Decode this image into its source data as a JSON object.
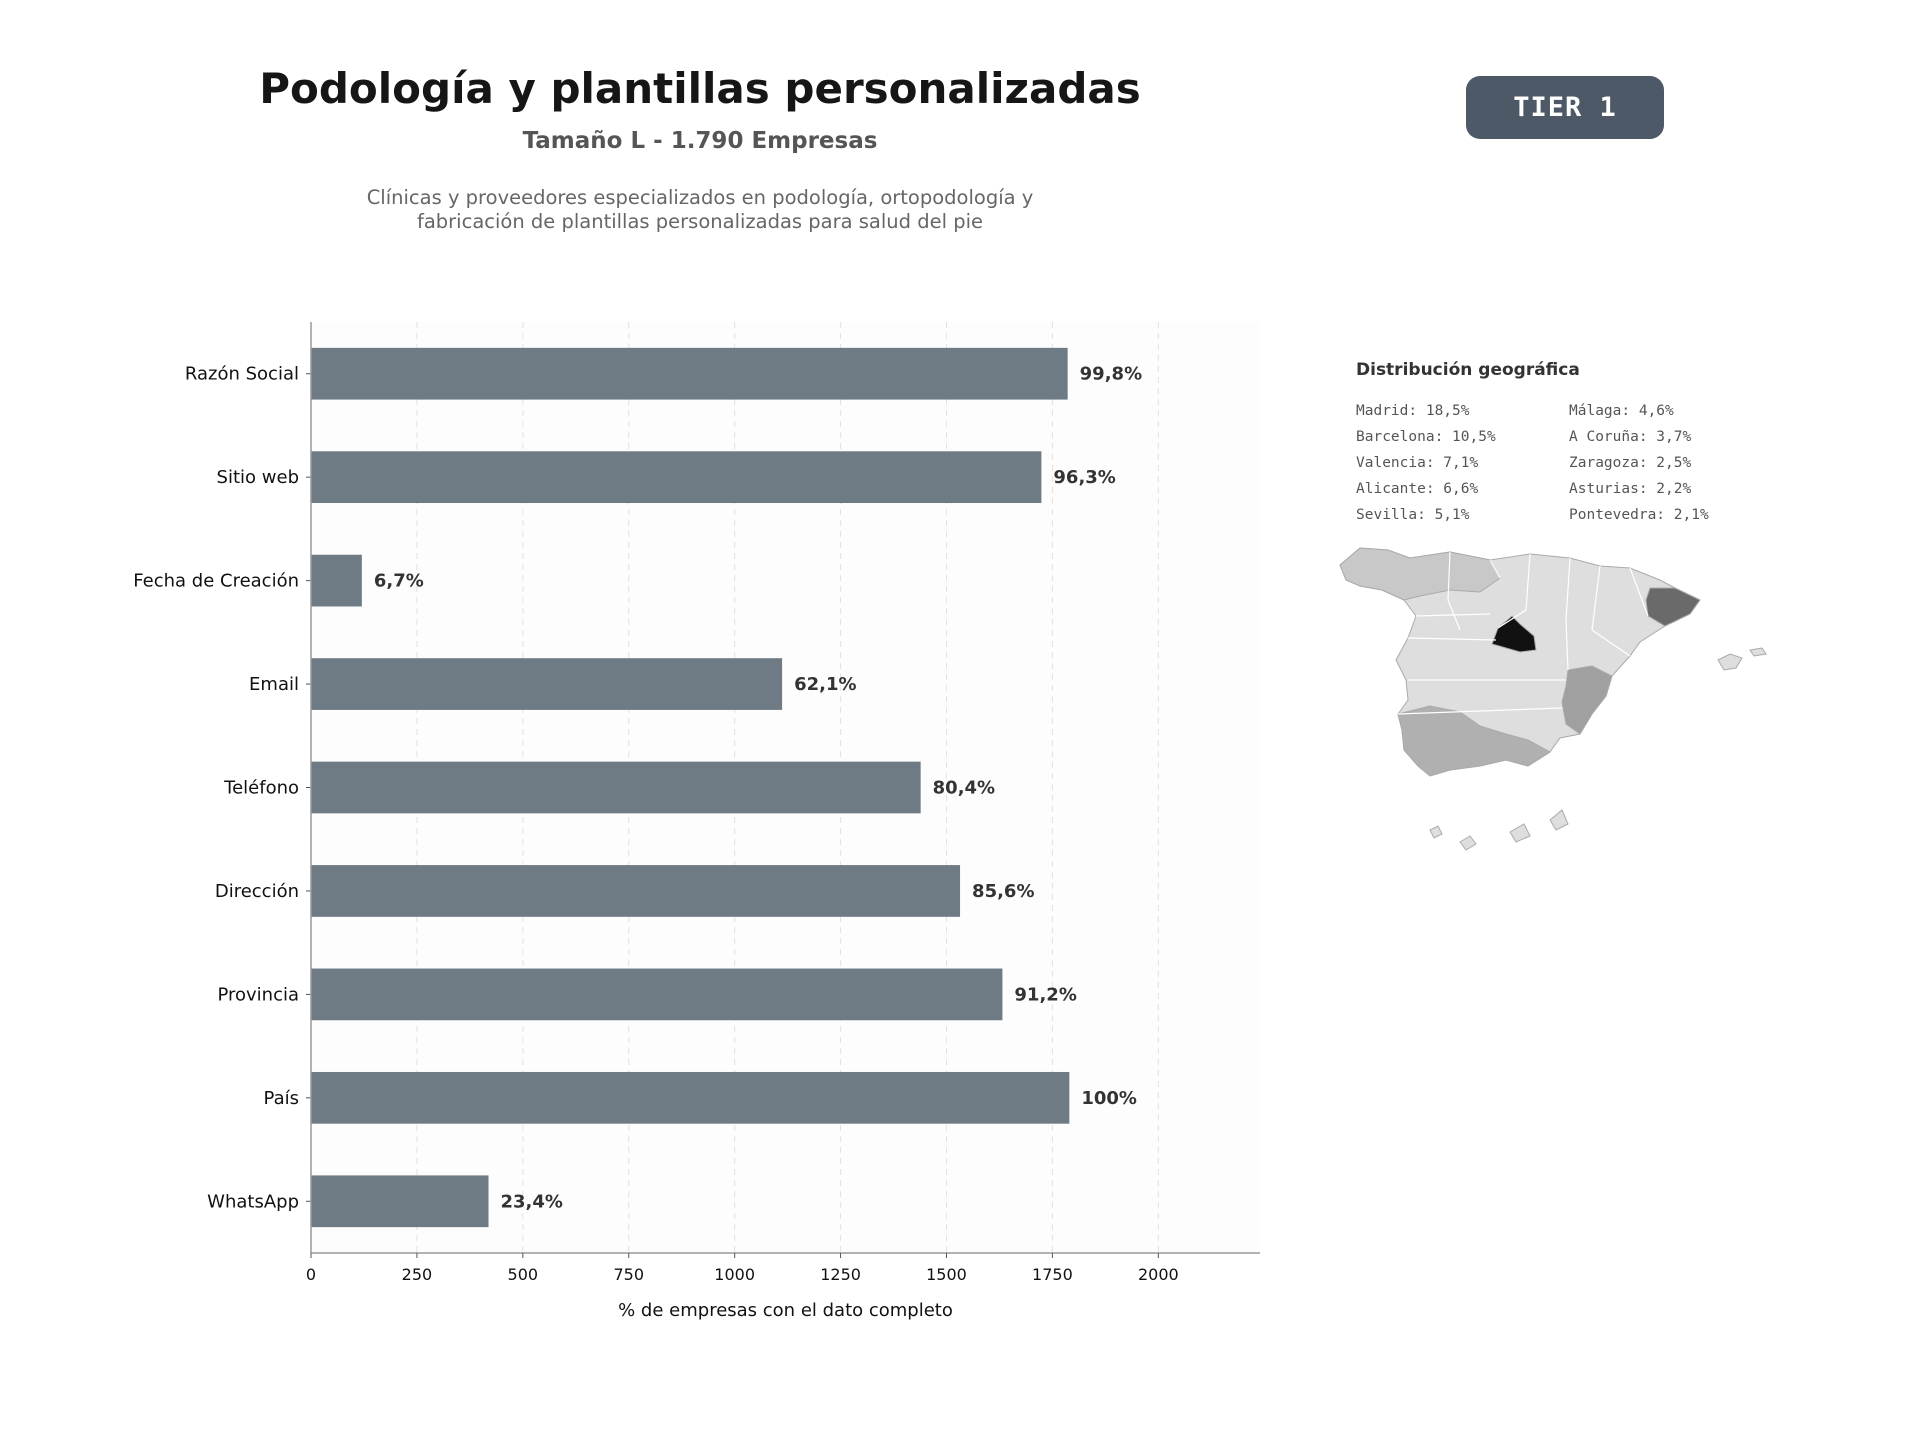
{
  "header": {
    "title": "Podología y plantillas personalizadas",
    "subtitle": "Tamaño L - 1.790 Empresas",
    "description_lines": [
      "Clínicas y proveedores especializados en podología, ortopodología y",
      "fabricación de plantillas personalizadas para salud del pie"
    ],
    "badge": "TIER 1"
  },
  "chart_data": {
    "type": "bar",
    "orientation": "horizontal",
    "categories": [
      "Razón Social",
      "Sitio web",
      "Fecha de Creación",
      "Email",
      "Teléfono",
      "Dirección",
      "Provincia",
      "País",
      "WhatsApp"
    ],
    "values": [
      1786,
      1724,
      120,
      1112,
      1439,
      1532,
      1632,
      1790,
      419
    ],
    "data_labels": [
      "99,8%",
      "96,3%",
      "6,7%",
      "62,1%",
      "80,4%",
      "85,6%",
      "91,2%",
      "100%",
      "23,4%"
    ],
    "xlabel": "% de empresas con el dato completo",
    "xlim": [
      0,
      2240
    ],
    "xticks": [
      0,
      250,
      500,
      750,
      1000,
      1250,
      1500,
      1750,
      2000
    ],
    "grid": "vertical-dashed",
    "colors": {
      "bar": "#6e7a84",
      "label": "#333333",
      "axis": "#999999",
      "grid": "#e2e2e2",
      "plot_bg": "#fdfdfd"
    }
  },
  "geo": {
    "title": "Distribución geográfica",
    "left_column": [
      "Madrid: 18,5%",
      "Barcelona: 10,5%",
      "Valencia: 7,1%",
      "Alicante: 6,6%",
      "Sevilla: 5,1%"
    ],
    "right_column": [
      "Málaga: 4,6%",
      "A Coruña: 3,7%",
      "Zaragoza: 2,5%",
      "Asturias: 2,2%",
      "Pontevedra: 2,1%"
    ],
    "map_colors": {
      "base": "#dedede",
      "madrid": "#111111",
      "barcelona": "#6a6a6a",
      "valencia": "#a0a0a0",
      "andalucia": "#b0b0b0",
      "north": "#c8c8c8",
      "border": "#aaaaaa"
    }
  }
}
